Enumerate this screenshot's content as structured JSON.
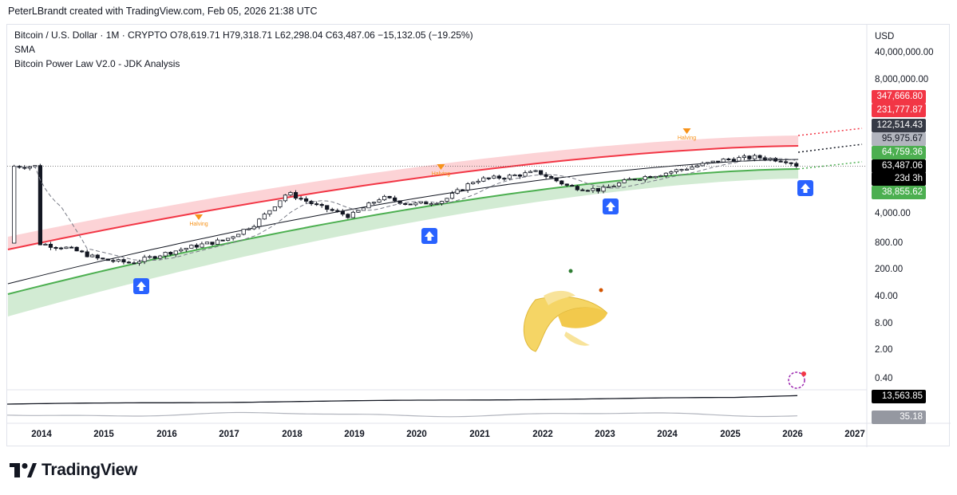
{
  "header": {
    "credit": "PeterLBrandt created with TradingView.com, Feb 05, 2026 21:38 UTC"
  },
  "legend": {
    "line1": "Bitcoin / U.S. Dollar · 1M · CRYPTO  O78,619.71  H79,318.71  L62,298.04  C63,487.06  −15,132.05 (−19.25%)",
    "line2": "SMA",
    "line3": "Bitcoin Power Law V2.0 - JDK Analysis"
  },
  "axis": {
    "currency": "USD",
    "y_ticks": [
      "40,000,000.00",
      "8,000,000.00",
      "4,000.00",
      "800.00",
      "200.00",
      "40.00",
      "8.00",
      "2.00",
      "0.40"
    ],
    "x_ticks": [
      "2014",
      "2015",
      "2016",
      "2017",
      "2018",
      "2019",
      "2020",
      "2021",
      "2022",
      "2023",
      "2024",
      "2025",
      "2026",
      "2027"
    ]
  },
  "price_tags": {
    "upper_band_top": "347,666.80",
    "upper_band_bottom": "231,777.87",
    "fair_value": "122,514.43",
    "sma": "95,975.67",
    "lower_band_top": "64,759.36",
    "last_close": "63,487.06",
    "countdown": "23d 3h",
    "lower_band_bottom": "38,855.62",
    "indicator_1": "13,563.85",
    "indicator_2": "35.18"
  },
  "markers": {
    "halving": "Halving"
  },
  "colors": {
    "up": "#ffffff",
    "down": "#131722",
    "upper_band": "#f23645",
    "lower_band": "#4caf50",
    "arrow": "#2962ff"
  },
  "brand": {
    "name": "TradingView"
  },
  "chart_data": {
    "type": "candlestick",
    "x": [
      "2013-12",
      "2014-06",
      "2014-12",
      "2015-06",
      "2015-12",
      "2016-06",
      "2016-12",
      "2017-06",
      "2017-12",
      "2018-06",
      "2018-12",
      "2019-06",
      "2019-12",
      "2020-06",
      "2020-12",
      "2021-06",
      "2021-12",
      "2022-06",
      "2022-12",
      "2023-06",
      "2023-12",
      "2024-06",
      "2024-12",
      "2025-06",
      "2025-12",
      "2026-02"
    ],
    "close": [
      800,
      600,
      320,
      260,
      430,
      670,
      960,
      2500,
      14000,
      6400,
      3700,
      10800,
      7200,
      9100,
      29000,
      35000,
      46000,
      19900,
      16500,
      30500,
      42000,
      62700,
      93400,
      107000,
      87000,
      63487
    ],
    "y_scale": "log",
    "series": [
      {
        "name": "SMA",
        "value_last": 95975.67
      },
      {
        "name": "Bitcoin Power Law V2.0 - JDK Analysis",
        "upper_band_last": [
          347666.8,
          231777.87
        ],
        "fair_value_last": 122514.43,
        "lower_band_last": [
          64759.36,
          38855.62
        ]
      }
    ],
    "annotations": [
      "Halving 2016",
      "Halving 2020",
      "Halving 2024"
    ],
    "buy_arrows": [
      "2015-08",
      "2020-01",
      "2022-12",
      "2026-02"
    ]
  }
}
